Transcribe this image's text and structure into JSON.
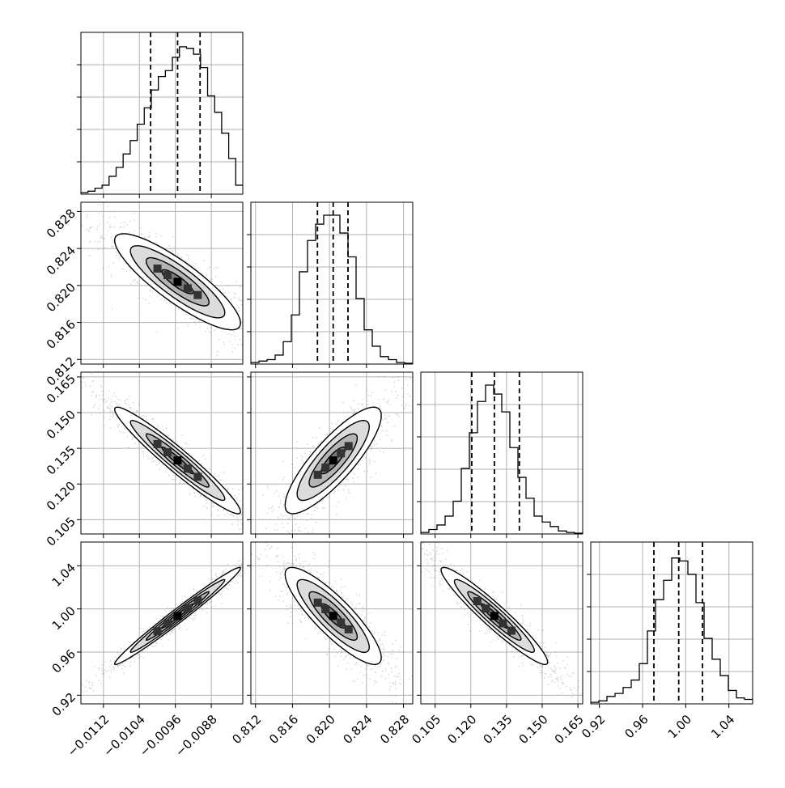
{
  "chart_data": {
    "type": "corner",
    "title": "",
    "grid": true,
    "parameters": [
      {
        "range": [
          -0.0117,
          -0.0081
        ],
        "ticks": [
          -0.0112,
          -0.0104,
          -0.0096,
          -0.0088
        ],
        "tick_labels": [
          "−0.0112",
          "−0.0104",
          "−0.0096",
          "−0.0088"
        ],
        "quantiles": [
          -0.01015,
          -0.00955,
          -0.00905
        ],
        "histogram": [
          0.01,
          0.02,
          0.04,
          0.06,
          0.12,
          0.18,
          0.27,
          0.36,
          0.47,
          0.58,
          0.7,
          0.79,
          0.83,
          0.92,
          0.99,
          0.98,
          0.94,
          0.85,
          0.66,
          0.55,
          0.41,
          0.24,
          0.06
        ]
      },
      {
        "range": [
          0.8115,
          0.829
        ],
        "ticks": [
          0.812,
          0.816,
          0.82,
          0.824,
          0.828
        ],
        "tick_labels": [
          "0.812",
          "0.816",
          "0.820",
          "0.824",
          "0.828"
        ],
        "quantiles": [
          0.8187,
          0.8204,
          0.822
        ],
        "histogram": [
          0.01,
          0.02,
          0.03,
          0.06,
          0.15,
          0.33,
          0.62,
          0.83,
          0.94,
          1.0,
          1.0,
          0.88,
          0.72,
          0.44,
          0.23,
          0.12,
          0.05,
          0.03,
          0.01,
          0.005
        ]
      },
      {
        "range": [
          0.099,
          0.167
        ],
        "ticks": [
          0.105,
          0.12,
          0.135,
          0.15,
          0.165
        ],
        "tick_labels": [
          "0.105",
          "0.120",
          "0.135",
          "0.150",
          "0.165"
        ],
        "quantiles": [
          0.1204,
          0.1299,
          0.1404
        ],
        "histogram": [
          0.01,
          0.03,
          0.06,
          0.12,
          0.22,
          0.44,
          0.68,
          0.89,
          1.0,
          0.94,
          0.82,
          0.58,
          0.38,
          0.24,
          0.12,
          0.08,
          0.05,
          0.02,
          0.01,
          0.005
        ]
      },
      {
        "range": [
          0.912,
          1.062
        ],
        "ticks": [
          0.92,
          0.96,
          1.0,
          1.04
        ],
        "tick_labels": [
          "0.92",
          "0.96",
          "1.00",
          "1.04"
        ],
        "quantiles": [
          0.9705,
          0.9935,
          1.0155
        ],
        "histogram": [
          0.01,
          0.02,
          0.05,
          0.07,
          0.11,
          0.16,
          0.27,
          0.49,
          0.7,
          0.83,
          0.98,
          0.96,
          0.87,
          0.68,
          0.44,
          0.3,
          0.19,
          0.09,
          0.04,
          0.03
        ]
      }
    ],
    "pairs": [
      {
        "x": 0,
        "y": 1,
        "center": [
          -0.00955,
          0.8204
        ],
        "sd": [
          0.0007,
          0.0026
        ],
        "rho": -0.86
      },
      {
        "x": 0,
        "y": 2,
        "center": [
          -0.00955,
          0.1299
        ],
        "sd": [
          0.0007,
          0.0112
        ],
        "rho": -0.96
      },
      {
        "x": 1,
        "y": 2,
        "center": [
          0.8204,
          0.1299
        ],
        "sd": [
          0.0026,
          0.0112
        ],
        "rho": 0.84
      },
      {
        "x": 0,
        "y": 3,
        "center": [
          -0.00955,
          0.9935
        ],
        "sd": [
          0.0007,
          0.0225
        ],
        "rho": 0.985
      },
      {
        "x": 1,
        "y": 3,
        "center": [
          0.8204,
          0.9935
        ],
        "sd": [
          0.0026,
          0.0225
        ],
        "rho": -0.86
      },
      {
        "x": 2,
        "y": 3,
        "center": [
          0.1299,
          0.9935
        ],
        "sd": [
          0.0112,
          0.0225
        ],
        "rho": -0.95
      }
    ],
    "contour_levels_sigma": [
      0.5,
      1.0,
      1.5,
      2.0
    ],
    "colors": {
      "line": "#000000",
      "grid": "#b0b0b0",
      "points": "#808080"
    }
  }
}
